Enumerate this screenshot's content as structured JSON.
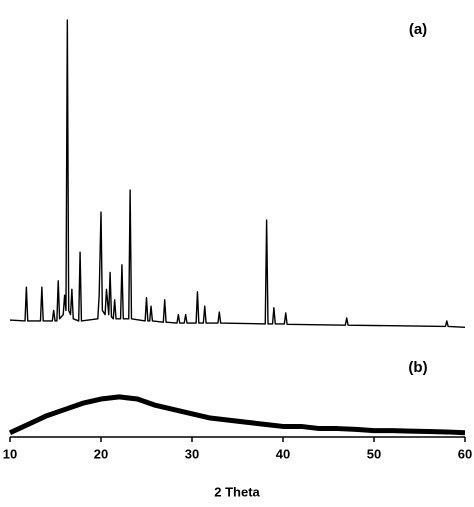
{
  "chart_data": {
    "type": "line",
    "x_label": "2 Theta",
    "xlim": [
      10,
      60
    ],
    "xticks": [
      10,
      20,
      30,
      40,
      50,
      60
    ],
    "ylim": [
      0,
      100
    ],
    "series": [
      {
        "name": "(a)",
        "color": "#000000",
        "x": [
          10,
          11.65,
          11.8,
          11.95,
          13.35,
          13.5,
          13.65,
          14.65,
          14.8,
          14.95,
          15.15,
          15.3,
          15.45,
          15.85,
          16.0,
          16.15,
          16.3,
          16.45,
          16.65,
          16.8,
          16.95,
          17.55,
          17.7,
          17.85,
          19.65,
          19.8,
          20.0,
          20.15,
          20.45,
          20.6,
          20.85,
          21.0,
          21.15,
          21.35,
          21.5,
          21.65,
          22.15,
          22.3,
          22.45,
          23.05,
          23.2,
          23.35,
          24.85,
          25.0,
          25.15,
          25.35,
          25.5,
          25.65,
          26.85,
          27.0,
          27.15,
          28.35,
          28.5,
          28.65,
          29.15,
          29.3,
          29.45,
          30.45,
          30.6,
          30.75,
          31.25,
          31.4,
          31.55,
          32.85,
          33.0,
          33.15,
          38.05,
          38.2,
          38.35,
          38.85,
          39.0,
          39.15,
          40.15,
          40.3,
          40.45,
          46.85,
          47.0,
          47.15,
          57.85,
          58.0,
          58.15,
          60
        ],
        "values": [
          27.7,
          27.5,
          35.5,
          27.5,
          27.5,
          35.5,
          27.5,
          27.5,
          30,
          27.5,
          27.5,
          37,
          28,
          29,
          33.6,
          30,
          98.8,
          30,
          29,
          35,
          28,
          27.5,
          43.8,
          27.5,
          28,
          33.6,
          53.3,
          30,
          29,
          35,
          29,
          39,
          28.5,
          28,
          32.5,
          28,
          28,
          40.8,
          28,
          28,
          58.5,
          28,
          27.5,
          33,
          27.5,
          27.5,
          31,
          27.5,
          27.2,
          32.5,
          27.2,
          27,
          29,
          27,
          27,
          29,
          27,
          27,
          34.4,
          27,
          27,
          31,
          27,
          27,
          29.6,
          27,
          26.8,
          51.4,
          26.8,
          26.8,
          30.6,
          26.8,
          26.8,
          29.4,
          26.7,
          26.5,
          28.2,
          26.5,
          26.2,
          27.5,
          26.2,
          26
        ]
      },
      {
        "name": "(b)",
        "color": "#000000",
        "x": [
          10,
          12,
          14,
          16,
          18,
          20,
          22,
          24,
          26,
          28,
          30,
          32,
          34,
          36,
          38,
          40,
          42,
          44,
          46,
          48,
          50,
          52,
          54,
          56,
          58,
          60
        ],
        "values": [
          1,
          3,
          5,
          6.5,
          8,
          9,
          9.5,
          9,
          7.5,
          6.5,
          5.5,
          4.5,
          4,
          3.5,
          3,
          2.5,
          2.5,
          2,
          2,
          1.8,
          1.5,
          1.5,
          1.4,
          1.3,
          1.2,
          1
        ]
      }
    ]
  }
}
